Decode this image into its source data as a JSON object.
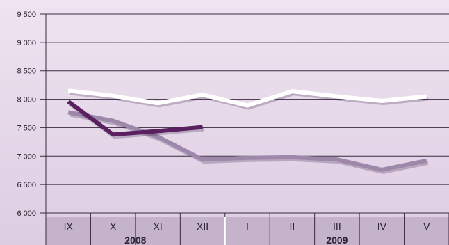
{
  "chart_data": {
    "type": "line",
    "categories": [
      "IX",
      "X",
      "XI",
      "XII",
      "I",
      "II",
      "III",
      "IV",
      "V"
    ],
    "year_groups": [
      {
        "label": "2008",
        "categories": [
          "IX",
          "X",
          "XI",
          "XII"
        ]
      },
      {
        "label": "2009",
        "categories": [
          "I",
          "II",
          "III",
          "IV",
          "V"
        ]
      }
    ],
    "y_ticks": [
      "6 000",
      "6 500",
      "7 000",
      "7 500",
      "8 000",
      "8 500",
      "9 000",
      "9 500"
    ],
    "ylim": [
      6000,
      9500
    ],
    "grid": true,
    "series": [
      {
        "color": "#ffffff",
        "values": [
          8150,
          8060,
          7930,
          8080,
          7890,
          8140,
          8050,
          7970,
          8050
        ]
      },
      {
        "color": "#9d88aa",
        "values": [
          7770,
          7620,
          7340,
          6940,
          6970,
          6980,
          6940,
          6760,
          6920
        ]
      },
      {
        "color": "#5a2060",
        "values": [
          7960,
          7380,
          7440,
          7510,
          null,
          null,
          null,
          null,
          null
        ]
      }
    ],
    "colors": {
      "background_top": "#eee4f0",
      "background_bottom": "#ddcde2",
      "axis_band": "#c5b3cc",
      "gridline": "#3a2a40"
    }
  }
}
